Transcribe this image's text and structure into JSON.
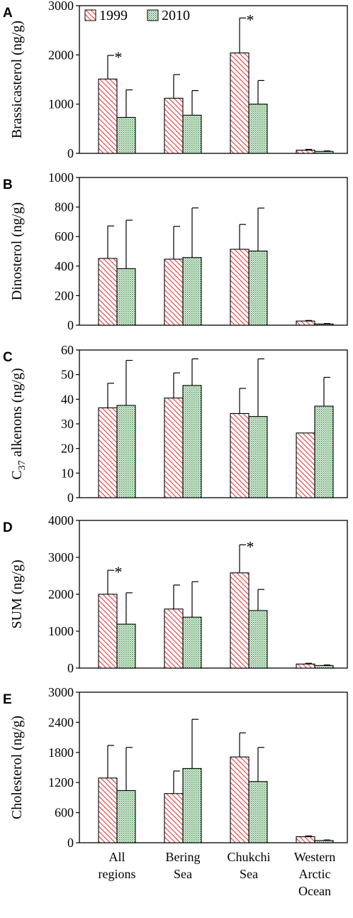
{
  "chart_data": [
    {
      "type": "bar",
      "panel_label": "A",
      "ylabel": "Brassicasterol (ng/g)",
      "ylim": [
        0,
        3000
      ],
      "yticks": [
        0,
        1000,
        2000,
        3000
      ],
      "categories": [
        "All regions",
        "Bering Sea",
        "Chukchi Sea",
        "Western Arctic Ocean"
      ],
      "series": [
        {
          "name": "1999",
          "values": [
            1510,
            1120,
            2040,
            65
          ],
          "errors": [
            480,
            480,
            710,
            15
          ]
        },
        {
          "name": "2010",
          "values": [
            730,
            775,
            1000,
            40
          ],
          "errors": [
            560,
            500,
            480,
            10
          ]
        }
      ],
      "significance": [
        "*",
        "",
        "*",
        ""
      ],
      "legend": "top-left"
    },
    {
      "type": "bar",
      "panel_label": "B",
      "ylabel": "Dinosterol (ng/g)",
      "ylim": [
        0,
        1000
      ],
      "yticks": [
        0,
        200,
        400,
        600,
        800,
        1000
      ],
      "categories": [
        "All regions",
        "Bering Sea",
        "Chukchi Sea",
        "Western Arctic Ocean"
      ],
      "series": [
        {
          "name": "1999",
          "values": [
            452,
            447,
            514,
            28
          ],
          "errors": [
            220,
            222,
            168,
            4
          ]
        },
        {
          "name": "2010",
          "values": [
            383,
            458,
            502,
            8
          ],
          "errors": [
            328,
            336,
            291,
            3
          ]
        }
      ]
    },
    {
      "type": "bar",
      "panel_label": "C",
      "ylabel_main": "C",
      "ylabel_sub": "37",
      "ylabel_rest": " alkenons (ng/g)",
      "ylim": [
        0,
        60
      ],
      "yticks": [
        0,
        10,
        20,
        30,
        40,
        50,
        60
      ],
      "categories": [
        "All regions",
        "Bering Sea",
        "Chukchi Sea",
        "Western Arctic Ocean"
      ],
      "series": [
        {
          "name": "1999",
          "values": [
            36.5,
            40.5,
            34.2,
            26.3
          ],
          "errors": [
            10.0,
            10.2,
            10.2,
            0
          ]
        },
        {
          "name": "2010",
          "values": [
            37.5,
            45.6,
            33.0,
            37.2
          ],
          "errors": [
            18.3,
            10.8,
            23.4,
            11.7
          ]
        }
      ]
    },
    {
      "type": "bar",
      "panel_label": "D",
      "ylabel": "SUM (ng/g)",
      "ylim": [
        0,
        4000
      ],
      "yticks": [
        0,
        1000,
        2000,
        3000,
        4000
      ],
      "categories": [
        "All regions",
        "Bering Sea",
        "Chukchi Sea",
        "Western Arctic Ocean"
      ],
      "series": [
        {
          "name": "1999",
          "values": [
            2000,
            1600,
            2580,
            110
          ],
          "errors": [
            650,
            650,
            760,
            20
          ]
        },
        {
          "name": "2010",
          "values": [
            1190,
            1380,
            1560,
            70
          ],
          "errors": [
            850,
            960,
            570,
            15
          ]
        }
      ],
      "significance": [
        "*",
        "",
        "*",
        ""
      ]
    },
    {
      "type": "bar",
      "panel_label": "E",
      "ylabel": "Cholesterol (ng/g)",
      "ylim": [
        0,
        3000
      ],
      "yticks": [
        0,
        600,
        1200,
        1800,
        2400,
        3000
      ],
      "categories": [
        "All regions",
        "Bering Sea",
        "Chukchi Sea",
        "Western Arctic Ocean"
      ],
      "series": [
        {
          "name": "1999",
          "values": [
            1290,
            980,
            1710,
            120
          ],
          "errors": [
            650,
            450,
            480,
            15
          ]
        },
        {
          "name": "2010",
          "values": [
            1040,
            1480,
            1220,
            45
          ],
          "errors": [
            860,
            980,
            680,
            10
          ]
        }
      ]
    }
  ],
  "x_axis": {
    "category_lines": [
      [
        "All",
        "regions"
      ],
      [
        "Bering",
        "Sea"
      ],
      [
        "Chukchi",
        "Sea"
      ],
      [
        "Western",
        "Arctic",
        "Ocean"
      ]
    ]
  },
  "colors": {
    "series_1999": "#e8383d",
    "series_2010": "#2e8b3a",
    "axis": "#000000"
  }
}
